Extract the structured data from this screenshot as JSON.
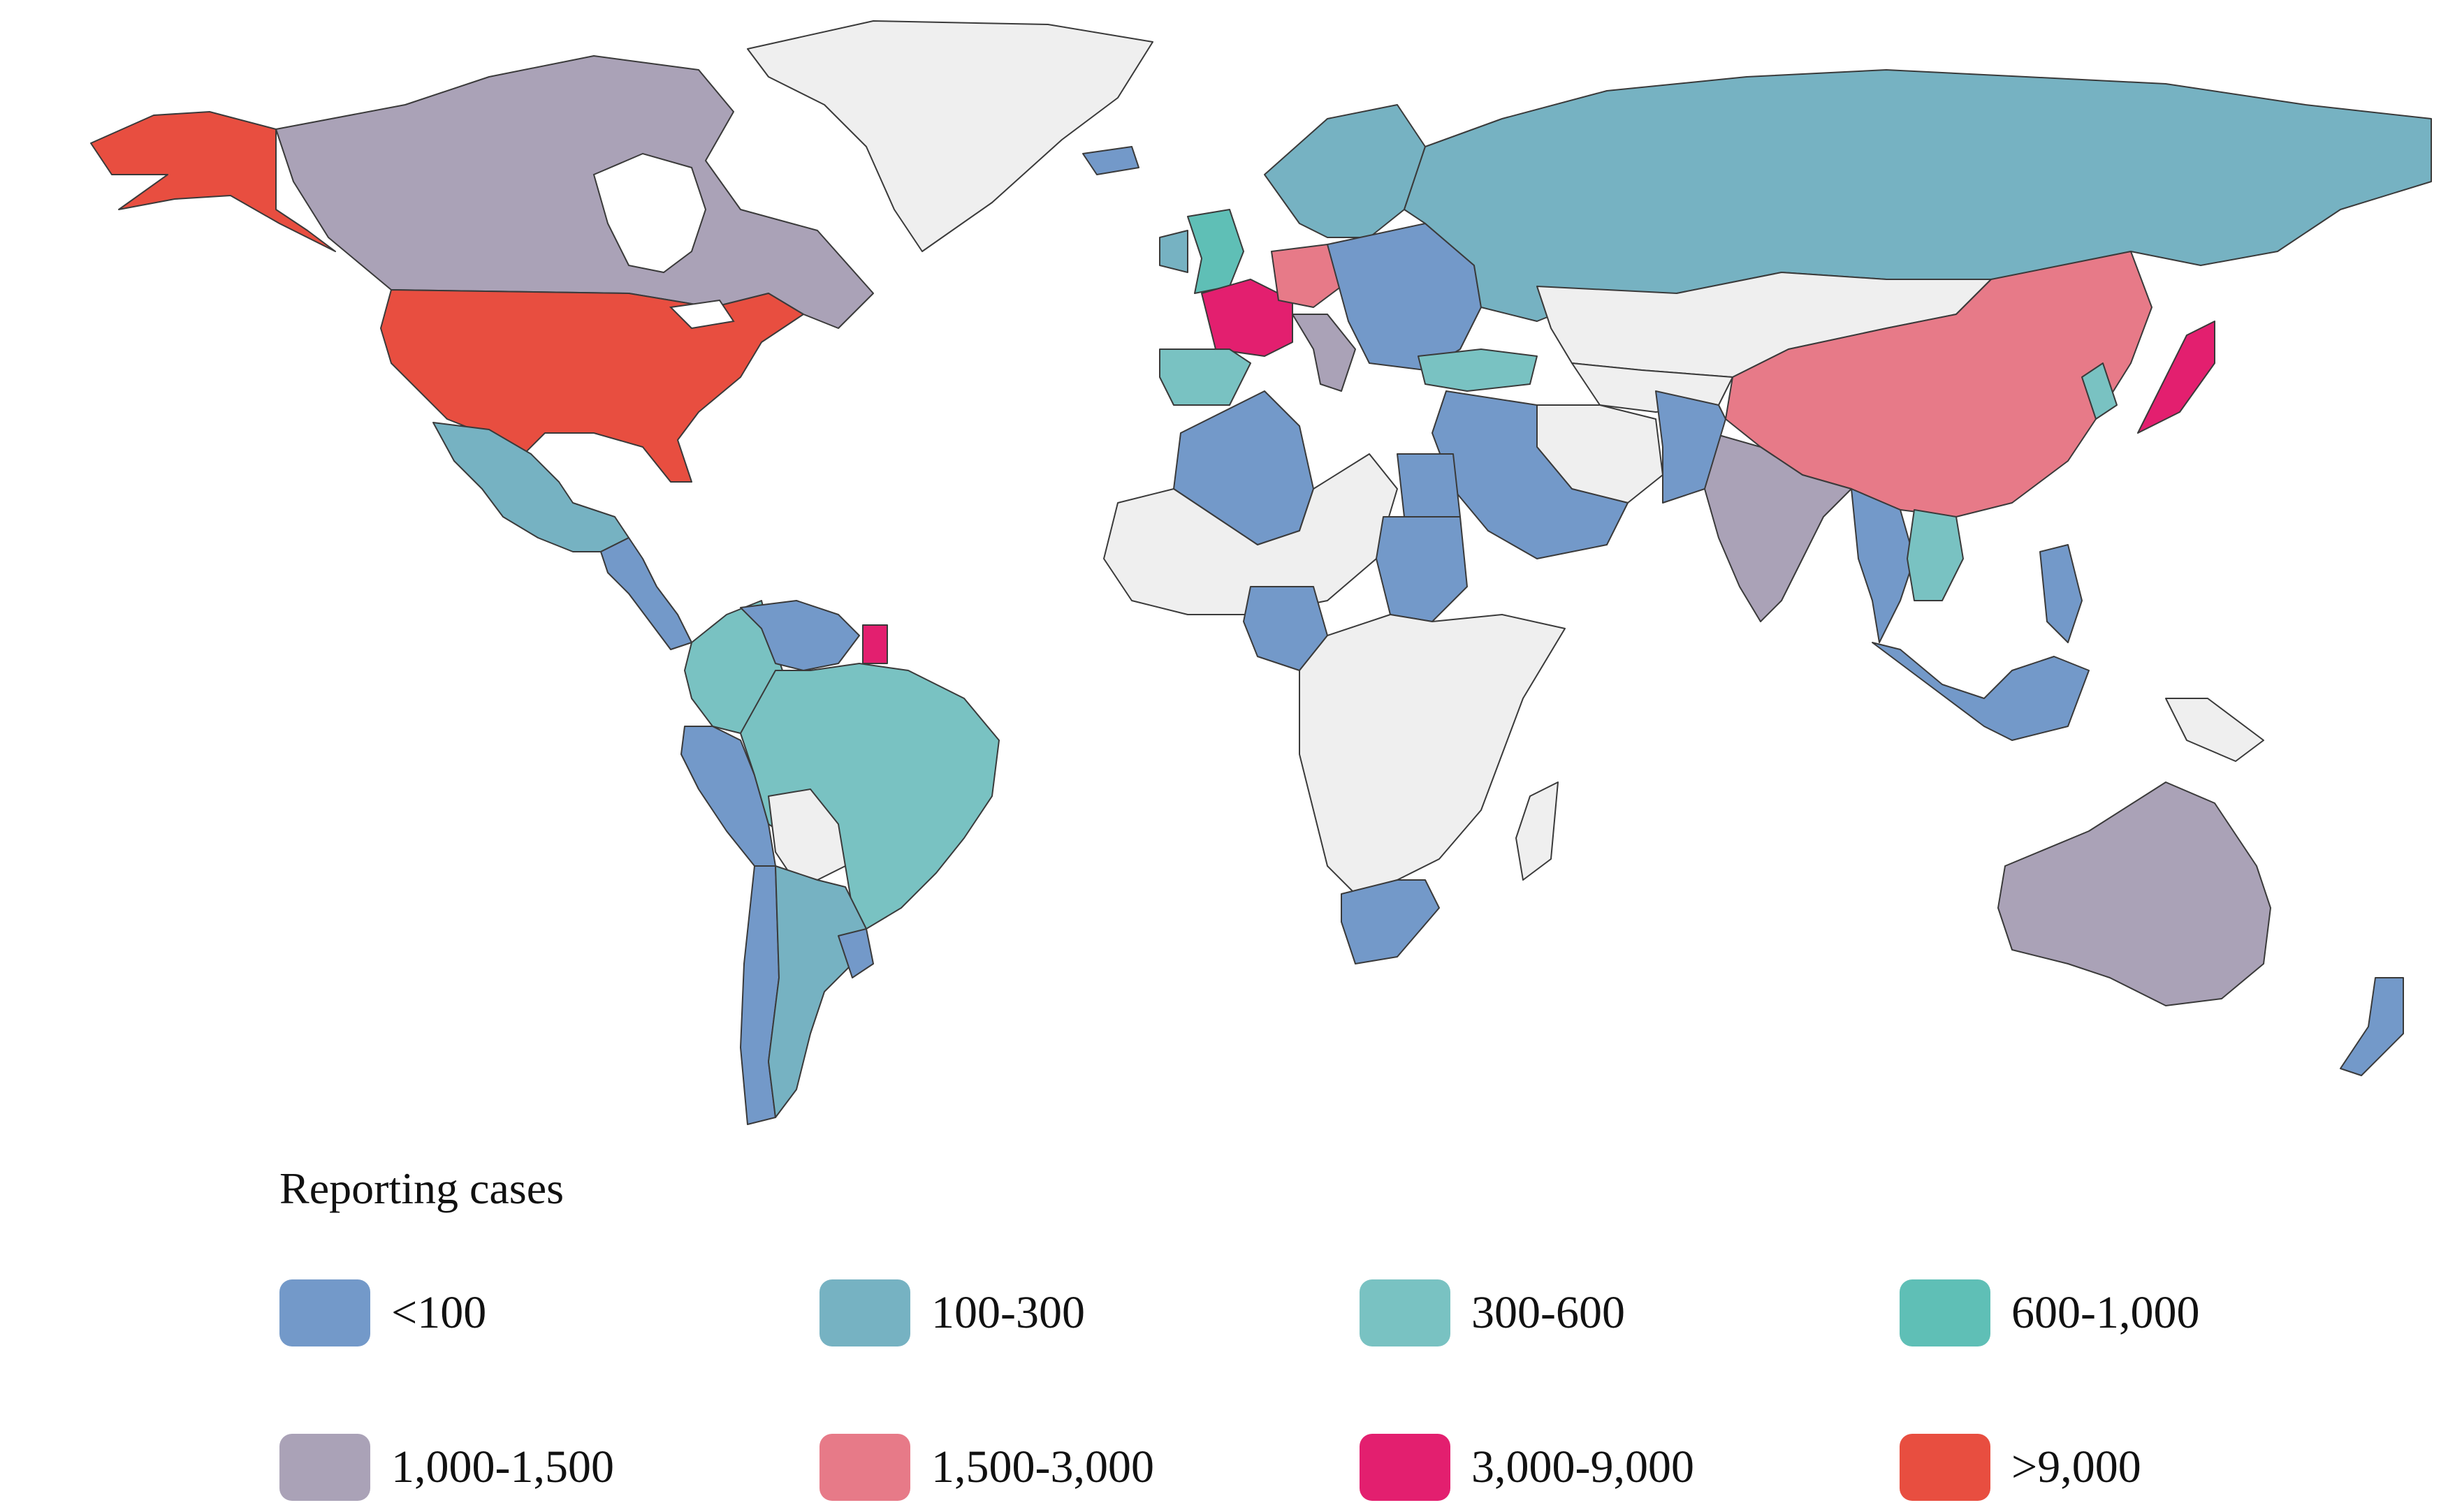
{
  "legend": {
    "title": "Reporting cases",
    "items": [
      {
        "label": "<100",
        "color": "#7399c9"
      },
      {
        "label": "100-300",
        "color": "#76b2c2"
      },
      {
        "label": "300-600",
        "color": "#79c2c2"
      },
      {
        "label": "600-1,000",
        "color": "#5fbfb6"
      },
      {
        "label": "1,000-1,500",
        "color": "#aaa2b7"
      },
      {
        "label": "1,500-3,000",
        "color": "#e77a88"
      },
      {
        "label": "3,000-9,000",
        "color": "#e31f6f"
      },
      {
        "label": ">9,000",
        "color": "#e84e40"
      }
    ]
  },
  "no_data_color": "#efefef",
  "countries": [
    {
      "name": "Greenland",
      "category": null
    },
    {
      "name": "Canada",
      "category": 4
    },
    {
      "name": "Alaska (USA)",
      "category": 7
    },
    {
      "name": "United States",
      "category": 7
    },
    {
      "name": "Mexico",
      "category": 1
    },
    {
      "name": "Central America",
      "category": 0
    },
    {
      "name": "Colombia",
      "category": 2
    },
    {
      "name": "Venezuela",
      "category": 0
    },
    {
      "name": "French Guiana",
      "category": 6
    },
    {
      "name": "Peru",
      "category": 0
    },
    {
      "name": "Brazil",
      "category": 2
    },
    {
      "name": "Bolivia",
      "category": null
    },
    {
      "name": "Chile",
      "category": 0
    },
    {
      "name": "Argentina",
      "category": 1
    },
    {
      "name": "Uruguay",
      "category": 0
    },
    {
      "name": "Iceland",
      "category": 0
    },
    {
      "name": "United Kingdom",
      "category": 3
    },
    {
      "name": "Ireland",
      "category": 1
    },
    {
      "name": "France",
      "category": 6
    },
    {
      "name": "Spain",
      "category": 2
    },
    {
      "name": "Germany",
      "category": 5
    },
    {
      "name": "Italy",
      "category": 4
    },
    {
      "name": "Scandinavia",
      "category": 1
    },
    {
      "name": "Eastern Europe",
      "category": 0
    },
    {
      "name": "Turkey",
      "category": 2
    },
    {
      "name": "Russia",
      "category": 1
    },
    {
      "name": "Kazakhstan & Mongolia",
      "category": null
    },
    {
      "name": "Central Asia",
      "category": null
    },
    {
      "name": "China",
      "category": 5
    },
    {
      "name": "Korea",
      "category": 2
    },
    {
      "name": "Japan",
      "category": 6
    },
    {
      "name": "India",
      "category": 4
    },
    {
      "name": "Iran",
      "category": null
    },
    {
      "name": "Afghanistan & Pakistan",
      "category": 0
    },
    {
      "name": "Arabian Peninsula",
      "category": 0
    },
    {
      "name": "Southeast Asia",
      "category": 0
    },
    {
      "name": "Indochina",
      "category": 2
    },
    {
      "name": "Indonesia",
      "category": 0
    },
    {
      "name": "Philippines",
      "category": 0
    },
    {
      "name": "Papua New Guinea",
      "category": null
    },
    {
      "name": "Australia",
      "category": 4
    },
    {
      "name": "New Zealand",
      "category": 0
    },
    {
      "name": "Algeria & Morocco",
      "category": 0
    },
    {
      "name": "Libya & Sahara",
      "category": null
    },
    {
      "name": "Egypt",
      "category": 0
    },
    {
      "name": "Sudan",
      "category": 0
    },
    {
      "name": "Nigeria",
      "category": 0
    },
    {
      "name": "Central & East Africa",
      "category": null
    },
    {
      "name": "South Africa",
      "category": 0
    },
    {
      "name": "Madagascar",
      "category": null
    }
  ]
}
